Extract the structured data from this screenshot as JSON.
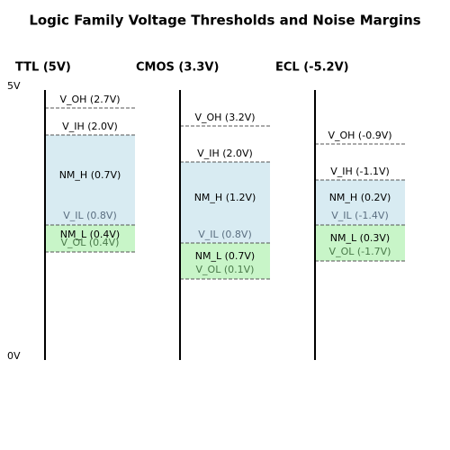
{
  "title": "Logic Family Voltage Thresholds and Noise Margins",
  "axis_labels": {
    "top": "5V",
    "bottom": "0V"
  },
  "columns": [
    {
      "header": "TTL (5V)",
      "v_oh": "V_OH (2.7V)",
      "v_ih": "V_IH (2.0V)",
      "nm_h": "NM_H (0.7V)",
      "v_il": "V_IL (0.8V)",
      "nm_l": "NM_L (0.4V)",
      "v_ol": "V_OL (0.4V)"
    },
    {
      "header": "CMOS (3.3V)",
      "v_oh": "V_OH (3.2V)",
      "v_ih": "V_IH (2.0V)",
      "nm_h": "NM_H (1.2V)",
      "v_il": "V_IL (0.8V)",
      "nm_l": "NM_L (0.7V)",
      "v_ol": "V_OL (0.1V)"
    },
    {
      "header": "ECL (-5.2V)",
      "v_oh": "V_OH (-0.9V)",
      "v_ih": "V_IH (-1.1V)",
      "nm_h": "NM_H (0.2V)",
      "v_il": "V_IL (-1.4V)",
      "nm_l": "NM_L (0.3V)",
      "v_ol": "V_OL (-1.7V)"
    }
  ]
}
